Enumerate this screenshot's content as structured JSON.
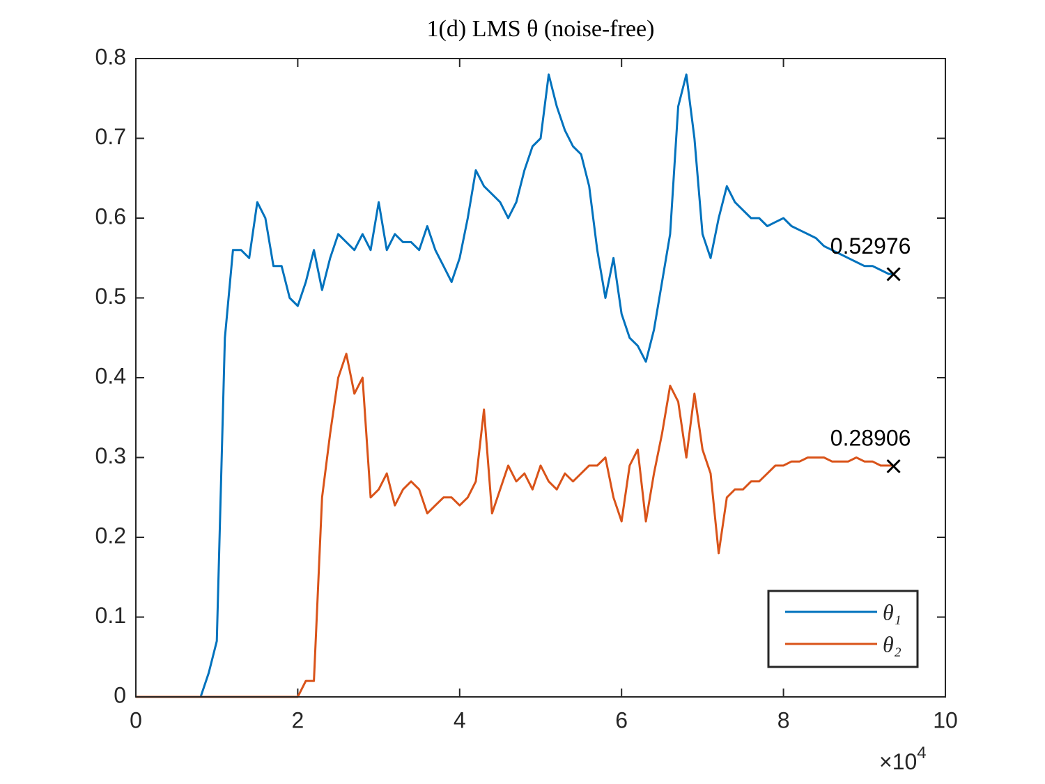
{
  "chart_data": {
    "type": "line",
    "title": "1(d) LMS θ (noise-free)",
    "x": [
      0,
      1000,
      2000,
      3000,
      4000,
      5000,
      6000,
      7000,
      8000,
      9000,
      10000,
      11000,
      12000,
      13000,
      14000,
      15000,
      16000,
      17000,
      18000,
      19000,
      20000,
      21000,
      22000,
      23000,
      24000,
      25000,
      26000,
      27000,
      28000,
      29000,
      30000,
      31000,
      32000,
      33000,
      34000,
      35000,
      36000,
      37000,
      38000,
      39000,
      40000,
      41000,
      42000,
      43000,
      44000,
      45000,
      46000,
      47000,
      48000,
      49000,
      50000,
      51000,
      52000,
      53000,
      54000,
      55000,
      56000,
      57000,
      58000,
      59000,
      60000,
      61000,
      62000,
      63000,
      64000,
      65000,
      66000,
      67000,
      68000,
      69000,
      70000,
      71000,
      72000,
      73000,
      74000,
      75000,
      76000,
      77000,
      78000,
      79000,
      80000,
      81000,
      82000,
      83000,
      84000,
      85000,
      86000,
      87000,
      88000,
      89000,
      90000,
      91000,
      92000,
      93000,
      93600
    ],
    "series": [
      {
        "name": "θ₁",
        "color": "#0072bd",
        "values": [
          0,
          0,
          0,
          0,
          0,
          0,
          0,
          0,
          0,
          0.03,
          0.07,
          0.45,
          0.56,
          0.56,
          0.55,
          0.62,
          0.6,
          0.54,
          0.54,
          0.5,
          0.49,
          0.52,
          0.56,
          0.51,
          0.55,
          0.58,
          0.57,
          0.56,
          0.58,
          0.56,
          0.62,
          0.56,
          0.58,
          0.57,
          0.57,
          0.56,
          0.59,
          0.56,
          0.54,
          0.52,
          0.55,
          0.6,
          0.66,
          0.64,
          0.63,
          0.62,
          0.6,
          0.62,
          0.66,
          0.69,
          0.7,
          0.78,
          0.74,
          0.71,
          0.69,
          0.68,
          0.64,
          0.56,
          0.5,
          0.55,
          0.48,
          0.45,
          0.44,
          0.42,
          0.46,
          0.52,
          0.58,
          0.74,
          0.78,
          0.7,
          0.58,
          0.55,
          0.6,
          0.64,
          0.62,
          0.61,
          0.6,
          0.6,
          0.59,
          0.595,
          0.6,
          0.59,
          0.585,
          0.58,
          0.575,
          0.565,
          0.56,
          0.555,
          0.55,
          0.545,
          0.54,
          0.54,
          0.535,
          0.53,
          0.53
        ]
      },
      {
        "name": "θ₂",
        "color": "#d95319",
        "values": [
          0,
          0,
          0,
          0,
          0,
          0,
          0,
          0,
          0,
          0,
          0,
          0,
          0,
          0,
          0,
          0,
          0,
          0,
          0,
          0,
          0,
          0.02,
          0.02,
          0.25,
          0.33,
          0.4,
          0.43,
          0.38,
          0.4,
          0.25,
          0.26,
          0.28,
          0.24,
          0.26,
          0.27,
          0.26,
          0.23,
          0.24,
          0.25,
          0.25,
          0.24,
          0.25,
          0.27,
          0.36,
          0.23,
          0.26,
          0.29,
          0.27,
          0.28,
          0.26,
          0.29,
          0.27,
          0.26,
          0.28,
          0.27,
          0.28,
          0.29,
          0.29,
          0.3,
          0.25,
          0.22,
          0.29,
          0.31,
          0.22,
          0.28,
          0.33,
          0.39,
          0.37,
          0.3,
          0.38,
          0.31,
          0.28,
          0.18,
          0.25,
          0.26,
          0.26,
          0.27,
          0.27,
          0.28,
          0.29,
          0.29,
          0.295,
          0.295,
          0.3,
          0.3,
          0.3,
          0.295,
          0.295,
          0.295,
          0.3,
          0.295,
          0.295,
          0.29,
          0.29,
          0.29
        ]
      }
    ],
    "annotations": [
      {
        "x": 93600,
        "y": 0.52976,
        "label": "0.52976"
      },
      {
        "x": 93600,
        "y": 0.28906,
        "label": "0.28906"
      }
    ],
    "xlim": [
      0,
      100000
    ],
    "xticks": [
      {
        "value": 0,
        "label": "0"
      },
      {
        "value": 20000,
        "label": "2"
      },
      {
        "value": 40000,
        "label": "4"
      },
      {
        "value": 60000,
        "label": "6"
      },
      {
        "value": 80000,
        "label": "8"
      },
      {
        "value": 100000,
        "label": "10"
      }
    ],
    "x_scale": {
      "base": "×10",
      "exponent": "4"
    },
    "ylim": [
      0,
      0.8
    ],
    "yticks": [
      0,
      0.1,
      0.2,
      0.3,
      0.4,
      0.5,
      0.6,
      0.7,
      0.8
    ],
    "grid": false,
    "legend": "lower right"
  }
}
